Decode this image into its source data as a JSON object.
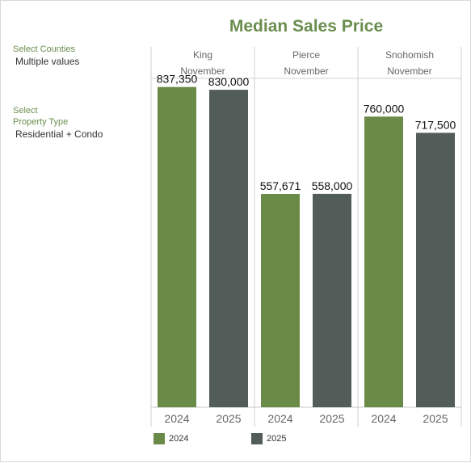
{
  "filters": {
    "counties_label": "Select Counties",
    "counties_value": "Multiple values",
    "type_label_1": "Select",
    "type_label_2": "Property Type",
    "type_value": "Residential + Condo"
  },
  "colors": {
    "2024": "#6a8a48",
    "2025": "#525c59"
  },
  "chart_data": {
    "type": "bar",
    "title": "Median Sales Price",
    "groups": [
      {
        "county": "King",
        "month": "November",
        "categories": [
          "2024",
          "2025"
        ],
        "values": [
          837350,
          830000
        ],
        "labels": [
          "837,350",
          "830,000"
        ]
      },
      {
        "county": "Pierce",
        "month": "November",
        "categories": [
          "2024",
          "2025"
        ],
        "values": [
          557671,
          558000
        ],
        "labels": [
          "557,671",
          "558,000"
        ]
      },
      {
        "county": "Snohomish",
        "month": "November",
        "categories": [
          "2024",
          "2025"
        ],
        "values": [
          760000,
          717500
        ],
        "labels": [
          "760,000",
          "717,500"
        ]
      }
    ],
    "legend": [
      {
        "name": "2024"
      },
      {
        "name": "2025"
      }
    ],
    "ylim": [
      0,
      900000
    ],
    "grid": false
  }
}
